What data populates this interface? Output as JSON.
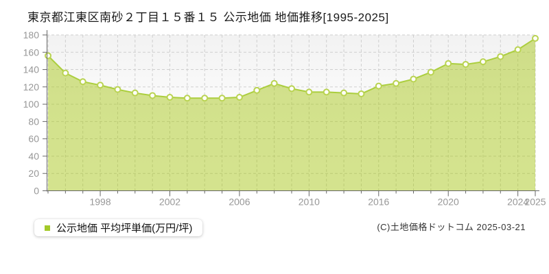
{
  "title": "東京都江東区南砂２丁目１５番１５ 公示地価 地価推移[1995-2025]",
  "legend": {
    "label": "公示地価 平均坪単価(万円/坪)",
    "marker_color": "#a3c929"
  },
  "footer": {
    "copyright": "(C)土地価格ドットコム 2025-03-21"
  },
  "chart_data": {
    "type": "area",
    "title": "東京都江東区南砂２丁目１５番１５ 公示地価 地価推移[1995-2025]",
    "ylabel": "平均坪単価(万円/坪)",
    "ylim": [
      0,
      180
    ],
    "y_tick_step": 20,
    "grid": true,
    "legend_position": "bottom-left",
    "x_first_year": "1995",
    "x_last_year": "2025",
    "x_tick_labels": [
      "1998",
      "2002",
      "2006",
      "2010",
      "2016",
      "2020",
      "2024",
      "2025"
    ],
    "x_tick_indices": [
      3,
      7,
      11,
      15,
      19,
      23,
      27,
      28
    ],
    "series": [
      {
        "name": "公示地価 平均坪単価(万円/坪)",
        "values": [
          156,
          136,
          126,
          122,
          117,
          113,
          110,
          108,
          107,
          107,
          107,
          108,
          116,
          124,
          118,
          114,
          114,
          113,
          112,
          121,
          124,
          129,
          137,
          147,
          146,
          149,
          155,
          163,
          176
        ]
      }
    ],
    "colors": {
      "area_fill": "rgba(170,200,30,0.5)",
      "line": "#abce3d",
      "marker_fill": "#fffef8",
      "marker_stroke": "#b9d351",
      "grid": "#cfcfcf",
      "axis": "#666666",
      "tick_label": "#979797",
      "bg_top": "#f2f2f2",
      "bg_bottom": "#ffffff"
    }
  }
}
